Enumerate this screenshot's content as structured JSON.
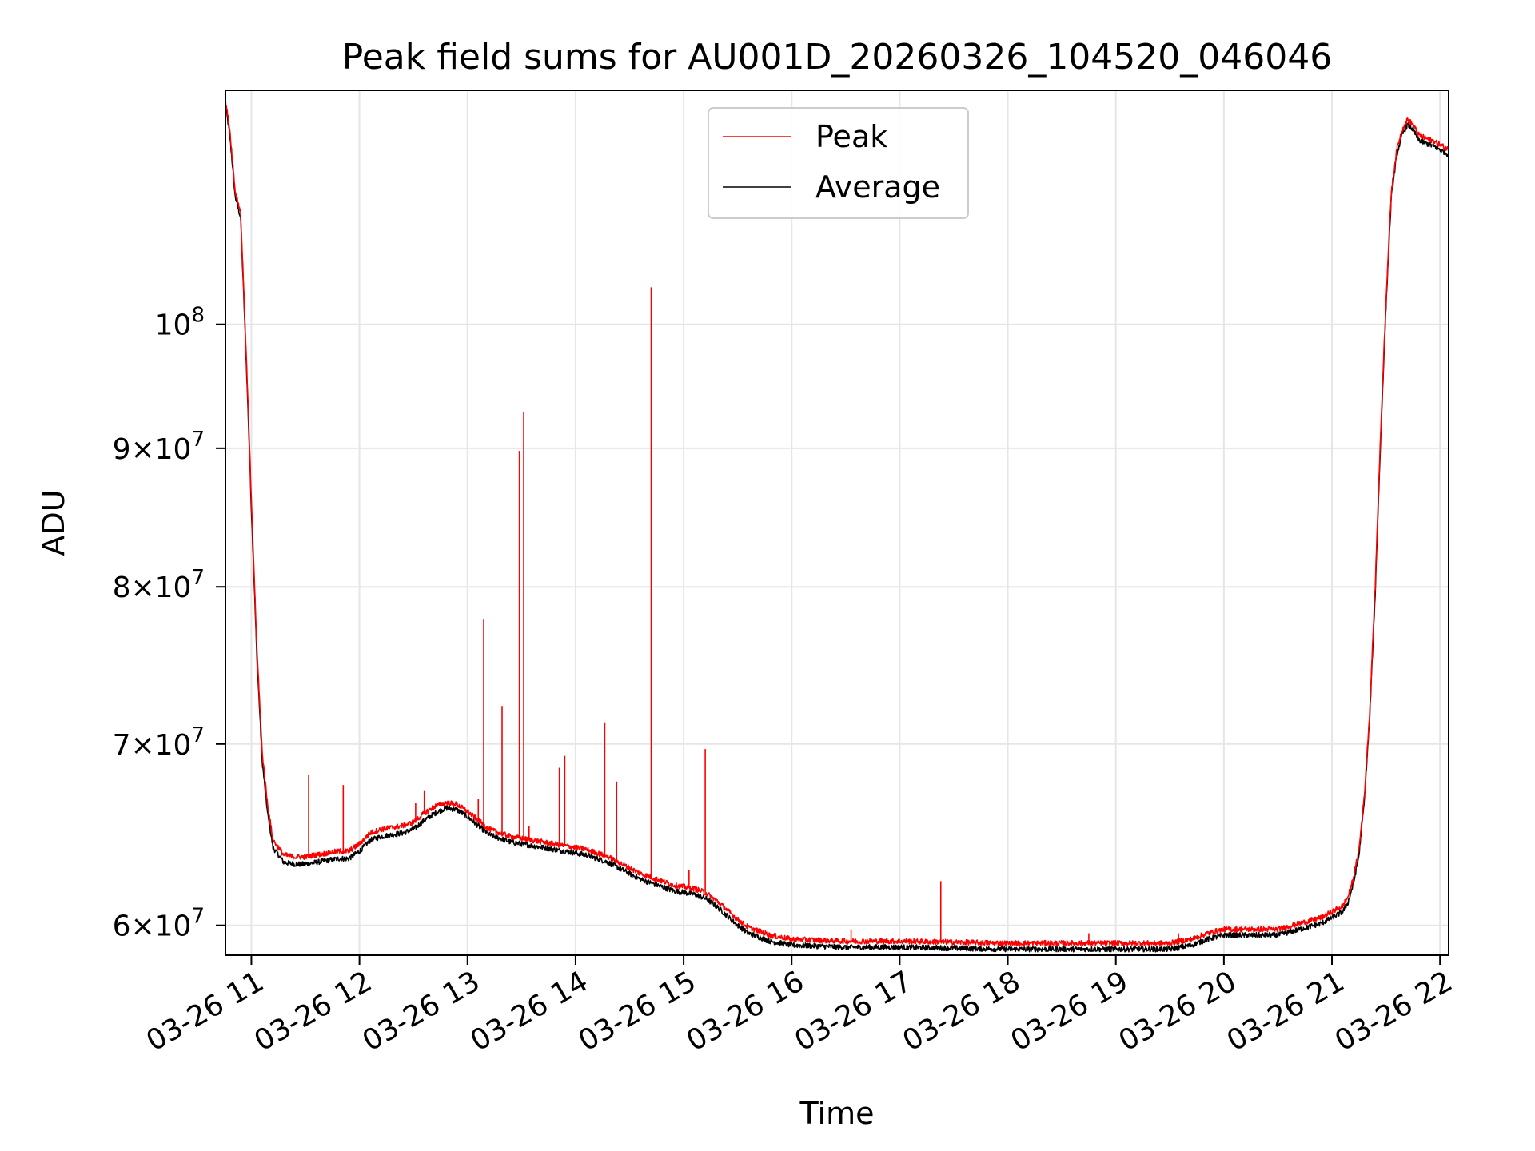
{
  "chart_data": {
    "type": "line",
    "title": "Peak field sums for AU001D_20260326_104520_046046",
    "xlabel": "Time",
    "ylabel": "ADU",
    "yscale": "log",
    "grid": true,
    "legend_position": "top-center",
    "x_unit": "hours on 2026-03-26",
    "xlim": [
      10.76,
      22.08
    ],
    "ylim": [
      58500000,
      122000000
    ],
    "x_ticks": [
      {
        "value": 11,
        "label": "03-26 11"
      },
      {
        "value": 12,
        "label": "03-26 12"
      },
      {
        "value": 13,
        "label": "03-26 13"
      },
      {
        "value": 14,
        "label": "03-26 14"
      },
      {
        "value": 15,
        "label": "03-26 15"
      },
      {
        "value": 16,
        "label": "03-26 16"
      },
      {
        "value": 17,
        "label": "03-26 17"
      },
      {
        "value": 18,
        "label": "03-26 18"
      },
      {
        "value": 19,
        "label": "03-26 19"
      },
      {
        "value": 20,
        "label": "03-26 20"
      },
      {
        "value": 21,
        "label": "03-26 21"
      },
      {
        "value": 22,
        "label": "03-26 22"
      }
    ],
    "y_ticks": [
      {
        "value": 60000000,
        "mantissa": "6",
        "exponent": "7",
        "times": "×",
        "base": "10"
      },
      {
        "value": 70000000,
        "mantissa": "7",
        "exponent": "7",
        "times": "×",
        "base": "10"
      },
      {
        "value": 80000000,
        "mantissa": "8",
        "exponent": "7",
        "times": "×",
        "base": "10"
      },
      {
        "value": 90000000,
        "mantissa": "9",
        "exponent": "7",
        "times": "×",
        "base": "10"
      },
      {
        "value": 100000000,
        "mantissa": "",
        "exponent": "8",
        "times": "",
        "base": "10"
      }
    ],
    "series": [
      {
        "name": "Peak",
        "color": "#ff0000",
        "x": [
          10.76,
          10.8,
          10.85,
          10.9,
          10.95,
          11.0,
          11.05,
          11.1,
          11.15,
          11.2,
          11.3,
          11.4,
          11.5,
          11.6,
          11.7,
          11.8,
          11.9,
          12.0,
          12.1,
          12.2,
          12.3,
          12.4,
          12.5,
          12.6,
          12.7,
          12.8,
          12.9,
          13.0,
          13.1,
          13.2,
          13.3,
          13.4,
          13.5,
          13.6,
          13.7,
          13.8,
          13.9,
          14.0,
          14.1,
          14.2,
          14.3,
          14.4,
          14.5,
          14.6,
          14.7,
          14.8,
          14.9,
          15.0,
          15.1,
          15.2,
          15.3,
          15.4,
          15.5,
          15.6,
          15.7,
          15.8,
          15.9,
          16.0,
          16.5,
          17.0,
          17.5,
          18.0,
          18.5,
          19.0,
          19.5,
          19.7,
          19.85,
          20.0,
          20.3,
          20.5,
          20.7,
          20.9,
          21.0,
          21.1,
          21.15,
          21.2,
          21.25,
          21.3,
          21.35,
          21.4,
          21.45,
          21.5,
          21.55,
          21.6,
          21.65,
          21.7,
          21.75,
          21.8,
          21.85,
          21.9,
          21.95,
          22.0,
          22.08
        ],
        "y": [
          121000000,
          118000000,
          112000000,
          110000000,
          98000000,
          86000000,
          76000000,
          69500000,
          66500000,
          64500000,
          63700000,
          63600000,
          63600000,
          63700000,
          63800000,
          63900000,
          63900000,
          64300000,
          64900000,
          65100000,
          65200000,
          65300000,
          65500000,
          66000000,
          66400000,
          66600000,
          66500000,
          66100000,
          65600000,
          65100000,
          64900000,
          64700000,
          64600000,
          64500000,
          64400000,
          64300000,
          64200000,
          64100000,
          64000000,
          63800000,
          63600000,
          63300000,
          63000000,
          62700000,
          62500000,
          62300000,
          62100000,
          62000000,
          61900000,
          61700000,
          61300000,
          60800000,
          60300000,
          59900000,
          59700000,
          59500000,
          59400000,
          59300000,
          59200000,
          59200000,
          59150000,
          59100000,
          59100000,
          59100000,
          59100000,
          59300000,
          59600000,
          59800000,
          59800000,
          59800000,
          60100000,
          60400000,
          60700000,
          61000000,
          61500000,
          62500000,
          64000000,
          67000000,
          72000000,
          80000000,
          91000000,
          102000000,
          112000000,
          116000000,
          118000000,
          119000000,
          118500000,
          117500000,
          117200000,
          117000000,
          116800000,
          116500000,
          116000000
        ],
        "spikes": [
          {
            "x": 11.53,
            "y": 68200000
          },
          {
            "x": 11.85,
            "y": 67600000
          },
          {
            "x": 12.52,
            "y": 66600000
          },
          {
            "x": 12.6,
            "y": 67300000
          },
          {
            "x": 13.1,
            "y": 66800000
          },
          {
            "x": 13.15,
            "y": 77800000
          },
          {
            "x": 13.32,
            "y": 72300000
          },
          {
            "x": 13.48,
            "y": 89800000
          },
          {
            "x": 13.52,
            "y": 92800000
          },
          {
            "x": 13.57,
            "y": 65300000
          },
          {
            "x": 13.85,
            "y": 68600000
          },
          {
            "x": 13.9,
            "y": 69300000
          },
          {
            "x": 14.27,
            "y": 71300000
          },
          {
            "x": 14.38,
            "y": 67800000
          },
          {
            "x": 14.7,
            "y": 103200000
          },
          {
            "x": 15.05,
            "y": 62900000
          },
          {
            "x": 15.2,
            "y": 69700000
          },
          {
            "x": 16.55,
            "y": 59800000
          },
          {
            "x": 17.38,
            "y": 62300000
          },
          {
            "x": 18.75,
            "y": 59600000
          },
          {
            "x": 19.58,
            "y": 59600000
          }
        ]
      },
      {
        "name": "Average",
        "color": "#000000",
        "x": [
          10.76,
          10.8,
          10.85,
          10.9,
          10.95,
          11.0,
          11.05,
          11.1,
          11.15,
          11.2,
          11.3,
          11.4,
          11.5,
          11.6,
          11.7,
          11.8,
          11.9,
          12.0,
          12.1,
          12.2,
          12.3,
          12.4,
          12.5,
          12.6,
          12.7,
          12.8,
          12.9,
          13.0,
          13.1,
          13.2,
          13.3,
          13.4,
          13.5,
          13.6,
          13.7,
          13.8,
          13.9,
          14.0,
          14.1,
          14.2,
          14.3,
          14.4,
          14.5,
          14.6,
          14.7,
          14.8,
          14.9,
          15.0,
          15.1,
          15.2,
          15.3,
          15.4,
          15.5,
          15.6,
          15.7,
          15.8,
          15.9,
          16.0,
          16.5,
          17.0,
          17.5,
          18.0,
          18.5,
          19.0,
          19.5,
          19.7,
          19.85,
          20.0,
          20.3,
          20.5,
          20.7,
          20.9,
          21.0,
          21.1,
          21.15,
          21.2,
          21.25,
          21.3,
          21.35,
          21.4,
          21.45,
          21.5,
          21.55,
          21.6,
          21.65,
          21.7,
          21.75,
          21.8,
          21.85,
          21.9,
          21.95,
          22.0,
          22.08
        ],
        "y": [
          120500000,
          117500000,
          111500000,
          109500000,
          97500000,
          85500000,
          75500000,
          69000000,
          66000000,
          64100000,
          63300000,
          63200000,
          63200000,
          63300000,
          63400000,
          63500000,
          63500000,
          63900000,
          64500000,
          64700000,
          64800000,
          64900000,
          65100000,
          65600000,
          66000000,
          66300000,
          66200000,
          65800000,
          65300000,
          64800000,
          64600000,
          64400000,
          64300000,
          64200000,
          64100000,
          64000000,
          63900000,
          63800000,
          63700000,
          63500000,
          63300000,
          63000000,
          62700000,
          62400000,
          62200000,
          62000000,
          61800000,
          61700000,
          61600000,
          61400000,
          61000000,
          60500000,
          60000000,
          59600000,
          59400000,
          59200000,
          59100000,
          59000000,
          58900000,
          58900000,
          58850000,
          58800000,
          58800000,
          58800000,
          58800000,
          59000000,
          59300000,
          59500000,
          59500000,
          59500000,
          59800000,
          60100000,
          60400000,
          60700000,
          61200000,
          62200000,
          63700000,
          66700000,
          71700000,
          79500000,
          90500000,
          101500000,
          111500000,
          115500000,
          117500000,
          118500000,
          118000000,
          117000000,
          116700000,
          116500000,
          116300000,
          116000000,
          115500000
        ]
      }
    ]
  }
}
